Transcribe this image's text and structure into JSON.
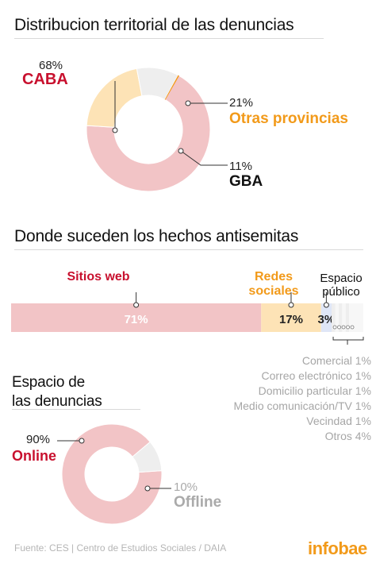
{
  "colors": {
    "red_fill": "#f2c4c6",
    "orange_fill": "#fde3b6",
    "gray_fill": "#eeeeee",
    "red_text": "#c8102e",
    "orange_text": "#f29a1a",
    "brand": "#f29a1a"
  },
  "section1": {
    "title": "Distribucion territorial de las denuncias"
  },
  "section2": {
    "title": "Donde suceden los hechos antisemitas"
  },
  "section3": {
    "title_line1": "Espacio de",
    "title_line2": "las denuncias"
  },
  "chart_data": [
    {
      "type": "pie",
      "title": "Distribucion territorial de las denuncias",
      "categories": [
        "CABA",
        "Otras provincias",
        "GBA"
      ],
      "values": [
        68,
        21,
        11
      ],
      "labels": [
        "68%",
        "21%",
        "11%"
      ]
    },
    {
      "type": "bar",
      "title": "Donde suceden los hechos antisemitas",
      "categories": [
        "Sitios web",
        "Redes sociales",
        "Espacio público"
      ],
      "values": [
        71,
        17,
        3
      ],
      "labels": [
        "71%",
        "17%",
        "3%"
      ],
      "breakdown": {
        "items": [
          {
            "name": "Comercial",
            "value": 1,
            "label": "Comercial 1%"
          },
          {
            "name": "Correo electrónico",
            "value": 1,
            "label": "Correo electrónico 1%"
          },
          {
            "name": "Domicilio particular",
            "value": 1,
            "label": "Domicilio particular 1%"
          },
          {
            "name": "Medio comunicación/TV",
            "value": 1,
            "label": "Medio comunicación/TV 1%"
          },
          {
            "name": "Vecindad",
            "value": 1,
            "label": "Vecindad 1%"
          },
          {
            "name": "Otros",
            "value": 4,
            "label": "Otros 4%"
          }
        ]
      }
    },
    {
      "type": "pie",
      "title": "Espacio de las denuncias",
      "categories": [
        "Online",
        "Offline"
      ],
      "values": [
        90,
        10
      ],
      "labels": [
        "90%",
        "10%"
      ]
    }
  ],
  "footer": {
    "source": "Fuente: CES | Centro de Estudios Sociales / DAIA",
    "logo": "infobae"
  }
}
